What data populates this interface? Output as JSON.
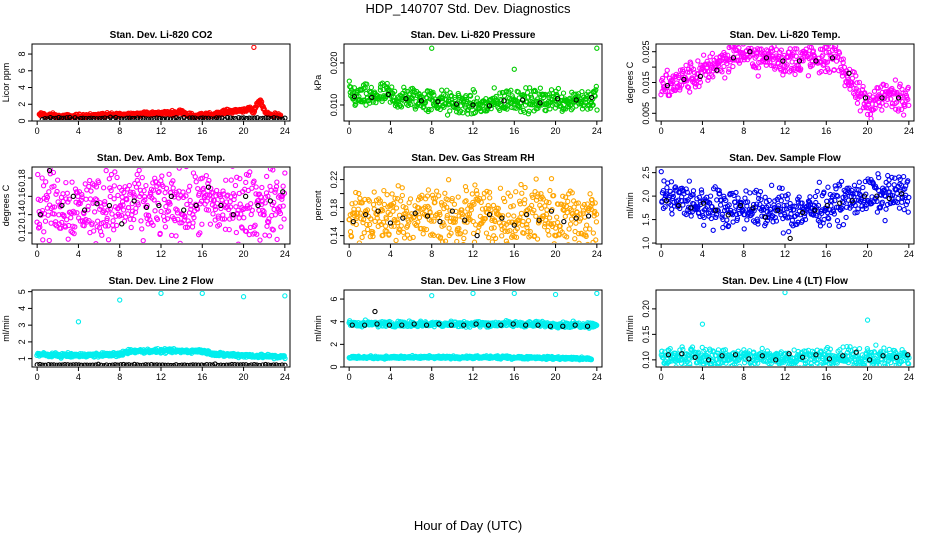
{
  "page": {
    "title": "HDP_140707  Std. Dev. Diagnostics",
    "xlabel": "Hour of Day (UTC)"
  },
  "chart_data": [
    {
      "type": "scatter",
      "title": "Stan. Dev. Li-820 CO2",
      "ylabel": "Licor ppm",
      "xlim": [
        -0.5,
        24.5
      ],
      "ylim": [
        0,
        9.2
      ],
      "xticks": [
        0,
        4,
        8,
        12,
        16,
        20,
        24
      ],
      "yticks": [
        0,
        2,
        4,
        6,
        8
      ],
      "ytick_labels": [
        "0",
        "2",
        "4",
        "6",
        "8"
      ],
      "series": [
        {
          "color": "#ff0000",
          "base": 0.45,
          "noise": 0.12,
          "x": [
            0.2,
            0.6,
            1.0,
            1.5,
            2.0,
            13.7,
            13.9,
            14.1,
            14.3,
            15.2,
            17.1,
            18.2,
            20.6,
            21.0,
            21.4,
            21.6,
            21.9,
            22.2,
            23.1,
            23.6
          ],
          "y": [
            0.7,
            0.8,
            0.6,
            0.7,
            0.5,
            1.0,
            1.2,
            1.1,
            0.9,
            0.6,
            0.8,
            1.1,
            1.4,
            1.0,
            2.3,
            2.5,
            1.6,
            0.9,
            0.7,
            0.6
          ]
        },
        {
          "color": "#000000",
          "base": 0.28,
          "noise": 0.06,
          "x": [
            0.5,
            2.0,
            4.0,
            6.0,
            8.0,
            10.0,
            12.0,
            14.0,
            16.0,
            18.0,
            20.0,
            22.0,
            24.0
          ],
          "y": [
            0.3,
            0.3,
            0.3,
            0.3,
            0.3,
            0.3,
            0.3,
            0.3,
            0.3,
            0.3,
            0.3,
            0.3,
            0.3
          ]
        },
        {
          "color": "#ff0000",
          "x": [
            21.0
          ],
          "y": [
            8.8
          ]
        }
      ]
    },
    {
      "type": "scatter",
      "title": "Stan. Dev. Li-820 Pressure",
      "ylabel": "kPa",
      "xlim": [
        -0.5,
        24.5
      ],
      "ylim": [
        0.0062,
        0.0245
      ],
      "xticks": [
        0,
        4,
        8,
        12,
        16,
        20,
        24
      ],
      "yticks": [
        0.01,
        0.02
      ],
      "ytick_labels": [
        "0.010",
        "0.020"
      ],
      "series": [
        {
          "color": "#00cc00",
          "x": [
            0.0,
            1.0,
            2.0,
            3.0,
            4.0,
            5.0,
            6.0,
            7.0,
            8.0,
            9.0,
            10.0,
            11.0,
            12.0,
            13.0,
            14.0,
            15.0,
            16.0,
            17.0,
            18.0,
            19.0,
            20.0,
            21.0,
            22.0,
            23.0,
            24.0
          ],
          "y": [
            0.0125,
            0.012,
            0.0118,
            0.0125,
            0.0122,
            0.0112,
            0.0118,
            0.0112,
            0.011,
            0.0108,
            0.0102,
            0.0105,
            0.01,
            0.0098,
            0.0105,
            0.011,
            0.0115,
            0.011,
            0.0108,
            0.0112,
            0.0115,
            0.011,
            0.0115,
            0.0112,
            0.0118
          ],
          "noise": 0.0014
        },
        {
          "color": "#000000",
          "x": [
            0.5,
            2.2,
            3.8,
            5.5,
            7.0,
            8.6,
            10.4,
            12.0,
            13.6,
            15.0,
            16.8,
            18.5,
            20.2,
            22.0,
            23.5
          ],
          "y": [
            0.012,
            0.0118,
            0.0125,
            0.0115,
            0.011,
            0.0108,
            0.0102,
            0.01,
            0.0098,
            0.011,
            0.0112,
            0.0105,
            0.0115,
            0.0112,
            0.0118
          ]
        },
        {
          "color": "#00cc00",
          "x": [
            8.0,
            16.0,
            24.0
          ],
          "y": [
            0.0235,
            0.0185,
            0.0235
          ]
        }
      ]
    },
    {
      "type": "scatter",
      "title": "Stan. Dev. Li-820 Temp.",
      "ylabel": "degrees C",
      "xlim": [
        -0.5,
        24.5
      ],
      "ylim": [
        0.0025,
        0.0275
      ],
      "xticks": [
        0,
        4,
        8,
        12,
        16,
        20,
        24
      ],
      "yticks": [
        0.005,
        0.01,
        0.015,
        0.02,
        0.025
      ],
      "ytick_labels": [
        "0.005",
        "",
        "0.015",
        "",
        "0.025"
      ],
      "series": [
        {
          "color": "#ff00ff",
          "x": [
            0,
            1,
            2,
            3,
            4,
            5,
            6,
            7,
            8,
            9,
            10,
            11,
            12,
            13,
            14,
            15,
            16,
            17,
            18,
            19,
            20,
            21,
            22,
            23,
            24
          ],
          "y": [
            0.013,
            0.014,
            0.016,
            0.017,
            0.018,
            0.021,
            0.022,
            0.024,
            0.025,
            0.024,
            0.023,
            0.023,
            0.022,
            0.022,
            0.023,
            0.022,
            0.023,
            0.025,
            0.017,
            0.011,
            0.008,
            0.01,
            0.011,
            0.01,
            0.012
          ],
          "noise": 0.0025
        },
        {
          "color": "#000000",
          "x": [
            0.6,
            2.2,
            3.8,
            5.4,
            7.0,
            8.6,
            10.2,
            11.8,
            13.4,
            15.0,
            16.6,
            18.2,
            19.8,
            21.4,
            23.0
          ],
          "y": [
            0.014,
            0.016,
            0.017,
            0.019,
            0.023,
            0.025,
            0.023,
            0.022,
            0.022,
            0.022,
            0.023,
            0.018,
            0.01,
            0.01,
            0.01
          ]
        }
      ]
    },
    {
      "type": "scatter",
      "title": "Stan. Dev. Amb. Box Temp.",
      "ylabel": "degrees C",
      "xlim": [
        -0.5,
        24.5
      ],
      "ylim": [
        0.108,
        0.192
      ],
      "xticks": [
        0,
        4,
        8,
        12,
        16,
        20,
        24
      ],
      "yticks": [
        0.12,
        0.14,
        0.16,
        0.18
      ],
      "ytick_labels": [
        "0.12",
        "0.14",
        "0.16",
        "0.18"
      ],
      "series": [
        {
          "color": "#ff00ff",
          "x": [
            0,
            2,
            4,
            6,
            8,
            10,
            12,
            14,
            16,
            18,
            20,
            22,
            24
          ],
          "y": [
            0.15,
            0.152,
            0.148,
            0.15,
            0.152,
            0.15,
            0.152,
            0.151,
            0.152,
            0.15,
            0.151,
            0.15,
            0.152
          ],
          "noise": 0.018
        },
        {
          "color": "#000000",
          "x": [
            0.3,
            1.2,
            2.4,
            3.5,
            4.6,
            5.8,
            7.0,
            8.2,
            9.4,
            10.6,
            11.8,
            13.0,
            14.2,
            15.4,
            16.6,
            17.8,
            19.0,
            20.2,
            21.4,
            22.6,
            23.8
          ],
          "y": [
            0.14,
            0.188,
            0.15,
            0.16,
            0.145,
            0.152,
            0.15,
            0.13,
            0.155,
            0.148,
            0.15,
            0.16,
            0.145,
            0.15,
            0.17,
            0.15,
            0.14,
            0.16,
            0.15,
            0.155,
            0.165
          ]
        }
      ]
    },
    {
      "type": "scatter",
      "title": "Stan. Dev. Gas Stream RH",
      "ylabel": "percent",
      "xlim": [
        -0.5,
        24.5
      ],
      "ylim": [
        0.128,
        0.238
      ],
      "xticks": [
        0,
        4,
        8,
        12,
        16,
        20,
        24
      ],
      "yticks": [
        0.14,
        0.16,
        0.18,
        0.2,
        0.22
      ],
      "ytick_labels": [
        "0.14",
        "",
        "0.18",
        "",
        "0.22"
      ],
      "series": [
        {
          "color": "#ffa500",
          "x": [
            0,
            2,
            4,
            6,
            8,
            10,
            12,
            14,
            16,
            18,
            20,
            22,
            24
          ],
          "y": [
            0.168,
            0.166,
            0.17,
            0.167,
            0.168,
            0.166,
            0.17,
            0.167,
            0.166,
            0.168,
            0.165,
            0.166,
            0.167
          ],
          "noise": 0.022
        },
        {
          "color": "#000000",
          "x": [
            0.4,
            1.6,
            2.8,
            4.0,
            5.2,
            6.4,
            7.6,
            8.8,
            10.0,
            11.2,
            12.4,
            13.6,
            14.8,
            16.0,
            17.2,
            18.4,
            19.6,
            20.8,
            22.0,
            23.2
          ],
          "y": [
            0.16,
            0.17,
            0.175,
            0.158,
            0.165,
            0.172,
            0.168,
            0.16,
            0.175,
            0.162,
            0.14,
            0.17,
            0.165,
            0.155,
            0.17,
            0.162,
            0.175,
            0.16,
            0.165,
            0.168
          ]
        }
      ]
    },
    {
      "type": "scatter",
      "title": "Stan. Dev. Sample Flow",
      "ylabel": "ml/min",
      "xlim": [
        -0.5,
        24.5
      ],
      "ylim": [
        0.98,
        2.62
      ],
      "xticks": [
        0,
        4,
        8,
        12,
        16,
        20,
        24
      ],
      "yticks": [
        1.0,
        1.5,
        2.0,
        2.5
      ],
      "ytick_labels": [
        "1.0",
        "1.5",
        "2.0",
        "2.5"
      ],
      "series": [
        {
          "color": "#0000ee",
          "x": [
            0,
            2,
            4,
            6,
            8,
            10,
            12,
            14,
            16,
            18,
            20,
            22,
            24
          ],
          "y": [
            2.0,
            1.9,
            1.8,
            1.78,
            1.75,
            1.72,
            1.7,
            1.72,
            1.8,
            1.9,
            2.0,
            2.05,
            2.1
          ],
          "noise": 0.2
        },
        {
          "color": "#000000",
          "x": [
            0.5,
            1.7,
            2.9,
            4.1,
            5.3,
            6.5,
            7.7,
            8.9,
            10.1,
            11.3,
            12.5,
            13.7,
            14.9,
            16.1,
            17.3,
            18.5,
            19.7,
            20.9,
            22.1,
            23.3
          ],
          "y": [
            1.9,
            1.8,
            1.75,
            1.85,
            1.7,
            1.6,
            1.8,
            1.75,
            1.55,
            1.7,
            1.1,
            1.65,
            1.7,
            1.8,
            1.85,
            1.9,
            2.0,
            2.0,
            1.95,
            2.05
          ]
        }
      ]
    },
    {
      "type": "scatter",
      "title": "Stan. Dev. Line 2 Flow",
      "ylabel": "ml/min",
      "xlim": [
        -0.5,
        24.5
      ],
      "ylim": [
        0.5,
        5.1
      ],
      "xticks": [
        0,
        4,
        8,
        12,
        16,
        20,
        24
      ],
      "yticks": [
        1,
        2,
        3,
        4,
        5
      ],
      "ytick_labels": [
        "1",
        "2",
        "3",
        "4",
        "5"
      ],
      "series": [
        {
          "color": "#00eeee",
          "x": [
            0,
            2,
            4,
            6,
            8,
            9,
            12,
            16,
            17.5,
            20,
            22,
            24
          ],
          "y": [
            1.25,
            1.2,
            1.2,
            1.22,
            1.25,
            1.45,
            1.45,
            1.45,
            1.25,
            1.2,
            1.15,
            1.1
          ],
          "noise": 0.06
        },
        {
          "color": "#000000",
          "x": [
            0,
            4,
            8,
            12,
            16,
            20,
            24
          ],
          "y": [
            0.62,
            0.62,
            0.62,
            0.62,
            0.62,
            0.62,
            0.62
          ],
          "noise": 0.02
        },
        {
          "color": "#00eeee",
          "x": [
            4.0,
            8.0,
            12.0,
            16.0,
            20.0,
            24.0
          ],
          "y": [
            3.2,
            4.5,
            4.9,
            4.9,
            4.7,
            4.75
          ]
        }
      ]
    },
    {
      "type": "scatter",
      "title": "Stan. Dev. Line 3 Flow",
      "ylabel": "ml/min",
      "xlim": [
        -0.5,
        24.5
      ],
      "ylim": [
        0,
        6.8
      ],
      "xticks": [
        0,
        4,
        8,
        12,
        16,
        20,
        24
      ],
      "yticks": [
        0,
        2,
        4,
        6
      ],
      "ytick_labels": [
        "0",
        "2",
        "4",
        "6"
      ],
      "series": [
        {
          "color": "#00eeee",
          "x": [
            0,
            4,
            8,
            12,
            16,
            20,
            24
          ],
          "y": [
            3.8,
            3.8,
            3.8,
            3.8,
            3.8,
            3.75,
            3.7
          ],
          "noise": 0.12
        },
        {
          "color": "#000000",
          "x": [
            0.3,
            1.5,
            2.7,
            3.9,
            5.1,
            6.3,
            7.5,
            8.7,
            9.9,
            11.1,
            12.3,
            13.5,
            14.7,
            15.9,
            17.1,
            18.3,
            19.5,
            20.7,
            21.9,
            23.1
          ],
          "y": [
            3.7,
            3.7,
            3.8,
            3.7,
            3.7,
            3.8,
            3.7,
            3.8,
            3.7,
            3.7,
            3.8,
            3.7,
            3.7,
            3.8,
            3.7,
            3.7,
            3.6,
            3.6,
            3.7,
            3.6
          ]
        },
        {
          "color": "#00eeee",
          "x": [
            0,
            4,
            8,
            12,
            16,
            20,
            22,
            23.5
          ],
          "y": [
            0.85,
            0.85,
            0.85,
            0.85,
            0.85,
            0.8,
            0.75,
            0.7
          ],
          "noise": 0.06
        },
        {
          "color": "#00eeee",
          "x": [
            8.0,
            12.0,
            16.0,
            20.0,
            24.0
          ],
          "y": [
            6.3,
            6.5,
            6.5,
            6.4,
            6.5
          ]
        },
        {
          "color": "#000000",
          "x": [
            2.5
          ],
          "y": [
            4.9
          ]
        }
      ]
    },
    {
      "type": "scatter",
      "title": "Stan. Dev. Line 4 (LT) Flow",
      "ylabel": "ml/min",
      "xlim": [
        -0.5,
        24.5
      ],
      "ylim": [
        0.086,
        0.237
      ],
      "xticks": [
        0,
        4,
        8,
        12,
        16,
        20,
        24
      ],
      "yticks": [
        0.1,
        0.15,
        0.2
      ],
      "ytick_labels": [
        "0.10",
        "0.15",
        "0.20"
      ],
      "series": [
        {
          "color": "#00eeee",
          "x": [
            0,
            4,
            8,
            12,
            16,
            20,
            24
          ],
          "y": [
            0.105,
            0.105,
            0.104,
            0.105,
            0.104,
            0.105,
            0.106
          ],
          "noise": 0.009
        },
        {
          "color": "#000000",
          "x": [
            0.7,
            2.0,
            3.3,
            4.6,
            5.9,
            7.2,
            8.5,
            9.8,
            11.1,
            12.4,
            13.7,
            15.0,
            16.3,
            17.6,
            18.9,
            20.2,
            21.5,
            22.8,
            23.9
          ],
          "y": [
            0.11,
            0.112,
            0.105,
            0.1,
            0.108,
            0.11,
            0.102,
            0.108,
            0.1,
            0.112,
            0.105,
            0.11,
            0.102,
            0.108,
            0.115,
            0.1,
            0.108,
            0.105,
            0.11
          ]
        },
        {
          "color": "#00eeee",
          "x": [
            4.0,
            12.0,
            20.0
          ],
          "y": [
            0.17,
            0.232,
            0.178
          ]
        }
      ]
    }
  ]
}
